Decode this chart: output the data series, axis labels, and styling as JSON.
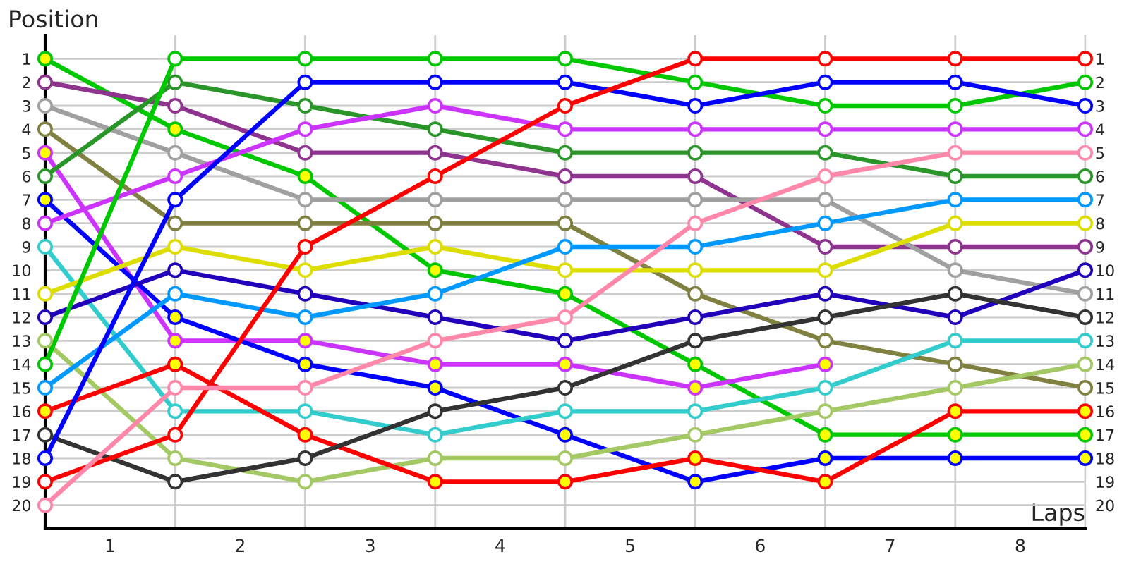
{
  "chart_data": {
    "type": "line",
    "xlabel": "Laps",
    "ylabel": "Position",
    "x": [
      0,
      1,
      2,
      3,
      4,
      5,
      6,
      7,
      8
    ],
    "xlim": [
      0,
      8
    ],
    "xticks": [
      {
        "value": 0,
        "label": null
      },
      {
        "value": 0.5,
        "label": "1"
      },
      {
        "value": 1,
        "label": null
      },
      {
        "value": 1.5,
        "label": "2"
      },
      {
        "value": 2,
        "label": null
      },
      {
        "value": 2.5,
        "label": "3"
      },
      {
        "value": 3,
        "label": null
      },
      {
        "value": 3.5,
        "label": "4"
      },
      {
        "value": 4,
        "label": null
      },
      {
        "value": 4.5,
        "label": "5"
      },
      {
        "value": 5,
        "label": null
      },
      {
        "value": 5.5,
        "label": "6"
      },
      {
        "value": 6,
        "label": null
      },
      {
        "value": 6.5,
        "label": "7"
      },
      {
        "value": 7,
        "label": null
      },
      {
        "value": 7.5,
        "label": "8"
      },
      {
        "value": 8,
        "label": null
      }
    ],
    "ylim": [
      21,
      0
    ],
    "yticks": [
      1,
      2,
      3,
      4,
      5,
      6,
      7,
      8,
      9,
      10,
      11,
      12,
      13,
      14,
      15,
      16,
      17,
      18,
      19,
      20
    ],
    "y2lim": [
      21,
      0
    ],
    "y2ticks": [
      1,
      2,
      3,
      4,
      5,
      6,
      7,
      8,
      9,
      10,
      11,
      12,
      13,
      14,
      15,
      16,
      17,
      18,
      19,
      20
    ],
    "grid": true,
    "marker": "circle",
    "line_style": "solid",
    "series": [
      {
        "color": "#00c800",
        "values": [
          1,
          4,
          6,
          10,
          11,
          14,
          17,
          17,
          17
        ],
        "colors": [
          "#ffff00",
          "#ffff00",
          "#ffff00",
          "#ffff00",
          "#ffff00",
          "#ffff00",
          "#ffff00",
          "#ffff00",
          "#ffff00"
        ]
      },
      {
        "color": "#8e348e",
        "values": [
          2,
          3,
          5,
          5,
          6,
          6,
          9,
          9,
          9
        ]
      },
      {
        "color": "#a0a0a0",
        "values": [
          3,
          5,
          7,
          7,
          7,
          7,
          7,
          10,
          11
        ]
      },
      {
        "color": "#808040",
        "values": [
          4,
          8,
          8,
          8,
          8,
          11,
          13,
          14,
          15
        ]
      },
      {
        "color": "#cc33ff",
        "values": [
          5,
          13,
          13,
          14,
          14,
          15,
          14,
          null,
          null
        ],
        "colors": [
          "#ffff00",
          "#ffff00",
          "#ffff00",
          "#ffff00",
          "#ffff00",
          "#ffff00",
          "#ffff00",
          "#ffff00",
          "#ffff00"
        ]
      },
      {
        "color": "#2a962a",
        "values": [
          6,
          2,
          3,
          4,
          5,
          5,
          5,
          6,
          6
        ]
      },
      {
        "color": "#0000ff",
        "values": [
          7,
          12,
          14,
          15,
          17,
          19,
          18,
          18,
          18
        ],
        "colors": [
          "#ffff00",
          "#ffff00",
          "#ffff00",
          "#ffff00",
          "#ffff00",
          "#ffff00",
          "#ffff00",
          "#ffff00",
          "#ffff00"
        ]
      },
      {
        "color": "#cc33ff",
        "values": [
          8,
          6,
          4,
          3,
          4,
          4,
          4,
          4,
          4
        ]
      },
      {
        "color": "#33cccc",
        "values": [
          9,
          16,
          16,
          17,
          16,
          16,
          15,
          13,
          13
        ]
      },
      {
        "color": "#dddd00",
        "values": [
          11,
          9,
          10,
          9,
          10,
          10,
          10,
          8,
          8
        ]
      },
      {
        "color": "#2200bb",
        "values": [
          12,
          10,
          11,
          12,
          13,
          12,
          11,
          12,
          10
        ]
      },
      {
        "color": "#a4c864",
        "values": [
          13,
          18,
          19,
          18,
          18,
          17,
          16,
          15,
          14
        ]
      },
      {
        "color": "#00c800",
        "values": [
          14,
          1,
          1,
          1,
          1,
          2,
          3,
          3,
          2
        ]
      },
      {
        "color": "#0099ff",
        "values": [
          15,
          11,
          12,
          11,
          9,
          9,
          8,
          7,
          7
        ]
      },
      {
        "color": "#ff0000",
        "values": [
          16,
          14,
          17,
          19,
          19,
          18,
          19,
          16,
          16
        ],
        "colors": [
          "#ffff00",
          "#ffff00",
          "#ffff00",
          "#ffff00",
          "#ffff00",
          "#ffff00",
          "#ffff00",
          "#ffff00",
          "#ffff00"
        ]
      },
      {
        "color": "#333333",
        "values": [
          17,
          19,
          18,
          16,
          15,
          13,
          12,
          11,
          12
        ]
      },
      {
        "color": "#0000ff",
        "values": [
          18,
          7,
          2,
          2,
          2,
          3,
          2,
          2,
          3
        ]
      },
      {
        "color": "#ff0000",
        "values": [
          19,
          17,
          9,
          6,
          3,
          1,
          1,
          1,
          1
        ]
      },
      {
        "color": "#ff88aa",
        "values": [
          20,
          15,
          15,
          13,
          12,
          8,
          6,
          5,
          5
        ]
      }
    ]
  }
}
